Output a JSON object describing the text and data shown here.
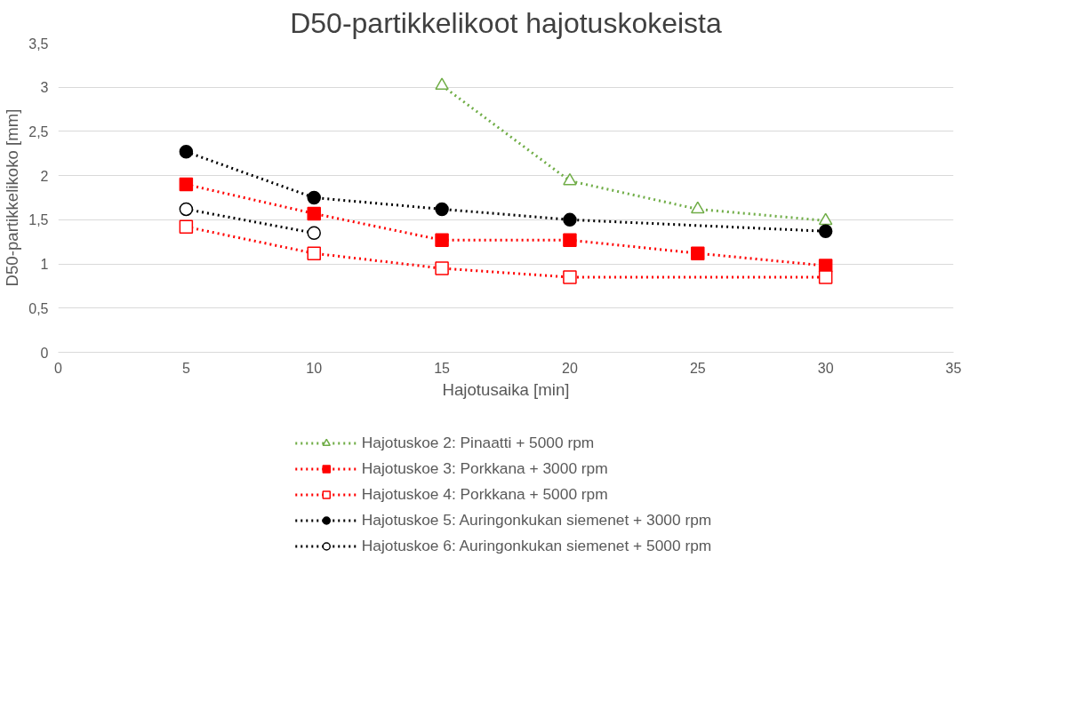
{
  "chart_data": {
    "type": "line",
    "title": "D50-partikkelikoot hajotuskokeista",
    "xlabel": "Hajotusaika [min]",
    "ylabel": "D50-partikkelikoko [mm]",
    "xlim": [
      0,
      35
    ],
    "xticks": [
      0,
      5,
      10,
      15,
      20,
      25,
      30,
      35
    ],
    "ylim": [
      0,
      3.5
    ],
    "yticks": [
      0,
      {
        "value": 0.5,
        "label": "0,5"
      },
      1,
      {
        "value": 1.5,
        "label": "1,5"
      },
      2,
      {
        "value": 2.5,
        "label": "2,5"
      },
      3,
      {
        "value": 3.5,
        "label": "3,5"
      }
    ],
    "grid": "y",
    "legend": "bottom",
    "line_style": "dotted",
    "series": [
      {
        "name": "Hajotuskoe 2: Pinaatti + 5000 rpm",
        "color": "#70ad47",
        "marker": "triangle_open",
        "x": [
          15,
          20,
          25,
          30
        ],
        "values": [
          3.02,
          1.94,
          1.62,
          1.49
        ]
      },
      {
        "name": "Hajotuskoe 3: Porkkana + 3000 rpm",
        "color": "#ff0000",
        "marker": "square",
        "x": [
          5,
          10,
          15,
          20,
          25,
          30
        ],
        "values": [
          1.9,
          1.57,
          1.27,
          1.27,
          1.12,
          0.98
        ]
      },
      {
        "name": "Hajotuskoe 4: Porkkana + 5000 rpm",
        "color": "#ff0000",
        "marker": "square_open",
        "x": [
          5,
          10,
          15,
          20,
          30
        ],
        "values": [
          1.42,
          1.12,
          0.95,
          0.85,
          0.85
        ]
      },
      {
        "name": "Hajotuskoe 5: Auringonkukan siemenet + 3000 rpm",
        "color": "#000000",
        "marker": "circle",
        "x": [
          5,
          10,
          15,
          20,
          30
        ],
        "values": [
          2.27,
          1.75,
          1.62,
          1.5,
          1.37
        ]
      },
      {
        "name": "Hajotuskoe 6: Auringonkukan siemenet + 5000 rpm",
        "color": "#000000",
        "marker": "circle_open",
        "x": [
          5,
          10
        ],
        "values": [
          1.62,
          1.35
        ]
      }
    ]
  }
}
